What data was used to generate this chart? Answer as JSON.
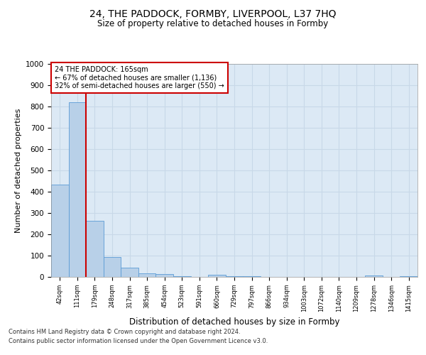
{
  "title": "24, THE PADDOCK, FORMBY, LIVERPOOL, L37 7HQ",
  "subtitle": "Size of property relative to detached houses in Formby",
  "xlabel": "Distribution of detached houses by size in Formby",
  "ylabel": "Number of detached properties",
  "bar_labels": [
    "42sqm",
    "111sqm",
    "179sqm",
    "248sqm",
    "317sqm",
    "385sqm",
    "454sqm",
    "523sqm",
    "591sqm",
    "660sqm",
    "729sqm",
    "797sqm",
    "866sqm",
    "934sqm",
    "1003sqm",
    "1072sqm",
    "1140sqm",
    "1209sqm",
    "1278sqm",
    "1346sqm",
    "1415sqm"
  ],
  "bar_values": [
    432,
    820,
    265,
    92,
    44,
    18,
    13,
    5,
    0,
    10,
    5,
    2,
    0,
    0,
    0,
    0,
    0,
    0,
    7,
    0,
    5
  ],
  "bar_color": "#b8d0e8",
  "bar_edge_color": "#5b9bd5",
  "ylim": [
    0,
    1000
  ],
  "yticks": [
    0,
    100,
    200,
    300,
    400,
    500,
    600,
    700,
    800,
    900,
    1000
  ],
  "property_line_x": 1.5,
  "property_line_color": "#cc0000",
  "annotation_text": "24 THE PADDOCK: 165sqm\n← 67% of detached houses are smaller (1,136)\n32% of semi-detached houses are larger (550) →",
  "annotation_box_color": "#cc0000",
  "grid_color": "#c8d8e8",
  "background_color": "#dce9f5",
  "footer1": "Contains HM Land Registry data © Crown copyright and database right 2024.",
  "footer2": "Contains public sector information licensed under the Open Government Licence v3.0."
}
